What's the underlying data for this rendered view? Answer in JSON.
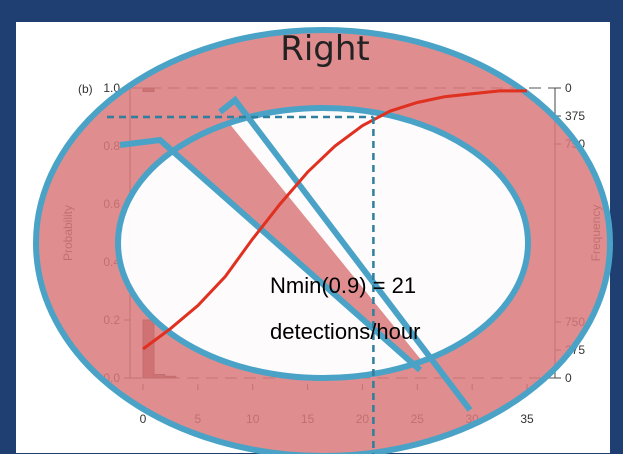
{
  "slide": {
    "badge": "Right",
    "annotation_line1": "Nmin(0.9) = 21",
    "annotation_line2": "detections/hour",
    "colors": {
      "background": "#1f3f73",
      "overlay_fill": "#d9797b",
      "overlay_ring": "#4aa3c6",
      "curve": "#e03020",
      "guide": "#2f7f9f"
    },
    "overlay_icon": "prohibition-sign-icon"
  },
  "chart_data": {
    "type": "line",
    "panel_label": "(b)",
    "ylabel": "Probability",
    "y2label": "Frequency",
    "xlim": [
      0,
      35
    ],
    "ylim": [
      0,
      1
    ],
    "xticks": [
      0,
      5,
      10,
      15,
      20,
      25,
      30,
      35
    ],
    "yticks": [
      "0.0",
      "0.2",
      "0.4",
      "0.6",
      "0.8",
      "1.0"
    ],
    "y2_top_ticks": [
      "0",
      "375",
      "750"
    ],
    "y2_bottom_ticks": [
      "750",
      "375",
      "0"
    ],
    "grid": false,
    "series": [
      {
        "x": [
          0,
          2.5,
          5,
          7.5,
          10,
          12.5,
          15,
          17.5,
          20,
          22.5,
          25,
          27.5,
          30,
          32.5,
          35
        ],
        "values": [
          0.1,
          0.17,
          0.25,
          0.35,
          0.48,
          0.6,
          0.71,
          0.8,
          0.87,
          0.92,
          0.95,
          0.97,
          0.98,
          0.99,
          0.99
        ]
      }
    ],
    "threshold": {
      "x": 21,
      "y": 0.9
    },
    "top_histogram": [
      {
        "x": 0.5,
        "value": 0.012
      }
    ],
    "bottom_histogram": [
      {
        "x": 0.5,
        "value": 0.2
      },
      {
        "x": 1.5,
        "value": 0.012
      },
      {
        "x": 2.5,
        "value": 0.006
      }
    ]
  }
}
